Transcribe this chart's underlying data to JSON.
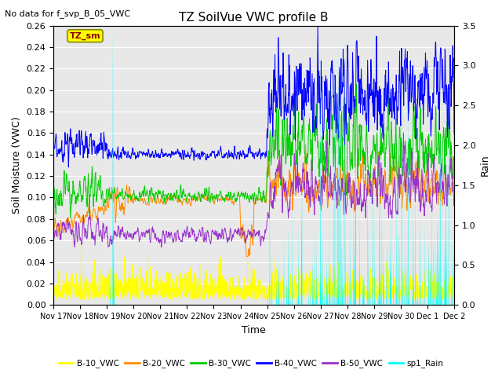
{
  "title": "TZ SoilVue VWC profile B",
  "subtitle": "No data for f_svp_B_05_VWC",
  "ylabel_left": "Soil Moisture (VWC)",
  "ylabel_right": "Rain",
  "xlabel": "Time",
  "ylim_left": [
    0.0,
    0.26
  ],
  "ylim_right": [
    0.0,
    3.5
  ],
  "yticks_left": [
    0.0,
    0.02,
    0.04,
    0.06,
    0.08,
    0.1,
    0.12,
    0.14,
    0.16,
    0.18,
    0.2,
    0.22,
    0.24,
    0.26
  ],
  "yticks_right": [
    0.0,
    0.5,
    1.0,
    1.5,
    2.0,
    2.5,
    3.0,
    3.5
  ],
  "xtick_labels": [
    "Nov 17",
    "Nov 18",
    "Nov 19",
    "Nov 20",
    "Nov 21",
    "Nov 22",
    "Nov 23",
    "Nov 24",
    "Nov 25",
    "Nov 26",
    "Nov 27",
    "Nov 28",
    "Nov 29",
    "Nov 30",
    "Dec 1",
    "Dec 2"
  ],
  "legend_label": "TZ_sm",
  "legend_box_color": "#ffff00",
  "series": {
    "B10": {
      "color": "#ffff00",
      "label": "B-10_VWC"
    },
    "B20": {
      "color": "#ff8c00",
      "label": "B-20_VWC"
    },
    "B30": {
      "color": "#00cc00",
      "label": "B-30_VWC"
    },
    "B40": {
      "color": "#0000ff",
      "label": "B-40_VWC"
    },
    "B50": {
      "color": "#9932cc",
      "label": "B-50_VWC"
    },
    "rain": {
      "color": "#00ffff",
      "label": "sp1_Rain"
    }
  },
  "background_color": "#e8e8e8",
  "grid_color": "#ffffff",
  "figsize": [
    6.4,
    4.8
  ],
  "dpi": 100
}
